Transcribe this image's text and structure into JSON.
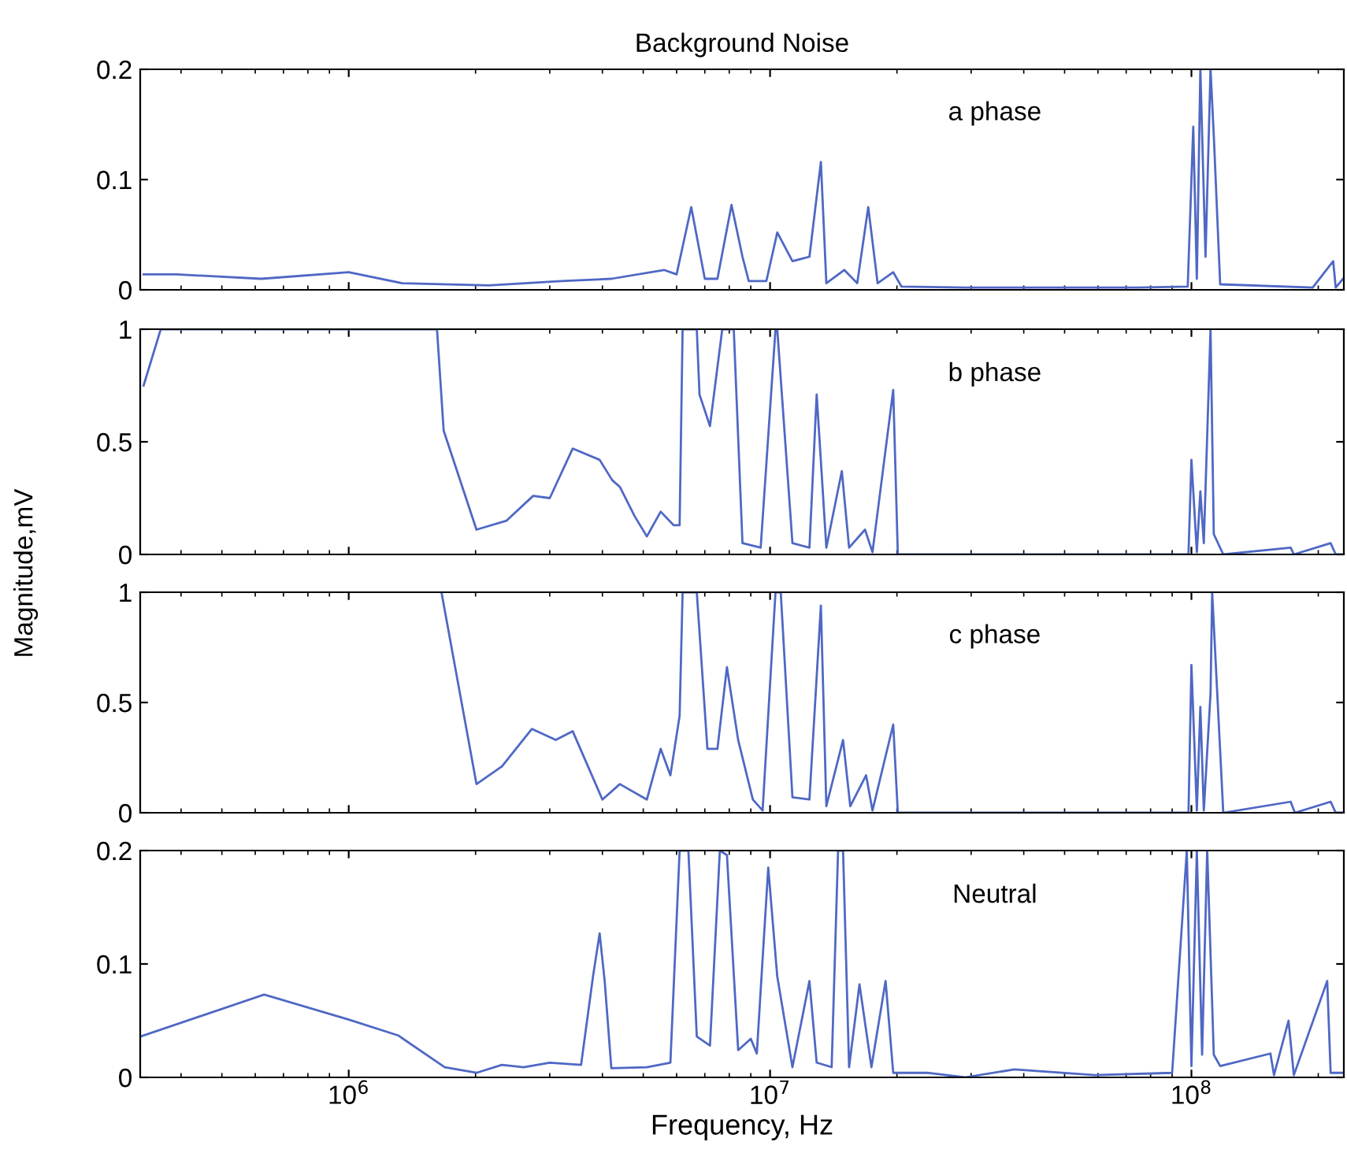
{
  "chart_data": [
    {
      "type": "line",
      "title": "Background Noise",
      "annotations": [
        "a phase"
      ],
      "log": "x",
      "xlim": [
        320000.0,
        230000000.0
      ],
      "xticks": [
        {
          "value": 1000000.0,
          "label": null
        },
        {
          "value": 10000000.0,
          "label": null
        },
        {
          "value": 100000000.0,
          "label": null
        }
      ],
      "ylim": [
        0,
        0.2
      ],
      "yticks": [
        0,
        0.1,
        0.2
      ],
      "tick_labels": "y",
      "grid": false,
      "legend": false,
      "series": [
        {
          "color": "#4f68c4",
          "x": [
            326000.0,
            390000.0,
            620000.0,
            1000000.0,
            1340000.0,
            2150000.0,
            3200000.0,
            4200000.0,
            5600000.0,
            6000000.0,
            6500000.0,
            7000000.0,
            7500000.0,
            8100000.0,
            8600000.0,
            8900000.0,
            9800000.0,
            10400000.0,
            11300000.0,
            12400000.0,
            13200000.0,
            13600000.0,
            15000000.0,
            16100000.0,
            17100000.0,
            18000000.0,
            19600000.0,
            20500000.0,
            29000000.0,
            75000000.0,
            98000000.0,
            101000000.0,
            103000000.0,
            105000000.0,
            108000000.0,
            111000000.0,
            113000000.0,
            117000000.0,
            194000000.0,
            217000000.0,
            220000000.0,
            229000000.0
          ],
          "values": [
            0.014,
            0.014,
            0.01,
            0.016,
            0.006,
            0.004,
            0.008,
            0.01,
            0.018,
            0.014,
            0.075,
            0.01,
            0.01,
            0.077,
            0.03,
            0.008,
            0.008,
            0.052,
            0.026,
            0.03,
            0.116,
            0.006,
            0.018,
            0.006,
            0.075,
            0.006,
            0.016,
            0.003,
            0.002,
            0.002,
            0.003,
            0.148,
            0.01,
            0.2,
            0.03,
            0.2,
            0.14,
            0.005,
            0.002,
            0.026,
            0.002,
            0.01
          ]
        }
      ]
    },
    {
      "type": "line",
      "annotations": [
        "b phase"
      ],
      "log": "x",
      "xlim": [
        320000.0,
        230000000.0
      ],
      "xticks": [
        {
          "value": 1000000.0,
          "label": null
        },
        {
          "value": 10000000.0,
          "label": null
        },
        {
          "value": 100000000.0,
          "label": null
        }
      ],
      "ylim": [
        0,
        1
      ],
      "yticks": [
        0,
        0.5,
        1
      ],
      "tick_labels": "y",
      "grid": false,
      "legend": false,
      "series": [
        {
          "color": "#4f68c4",
          "x": [
            326000.0,
            358000.0,
            1620000.0,
            1680000.0,
            2010000.0,
            2370000.0,
            2740000.0,
            3000000.0,
            3400000.0,
            3940000.0,
            4220000.0,
            4400000.0,
            4770000.0,
            5100000.0,
            5500000.0,
            5900000.0,
            6100000.0,
            6200000.0,
            6700000.0,
            6800000.0,
            7200000.0,
            7700000.0,
            8200000.0,
            8600000.0,
            9500000.0,
            10300000.0,
            10400000.0,
            11300000.0,
            12400000.0,
            12900000.0,
            13600000.0,
            14800000.0,
            15400000.0,
            16800000.0,
            17500000.0,
            19600000.0,
            20100000.0,
            75000000.0,
            98400000.0,
            100000000.0,
            103000000.0,
            105000000.0,
            107000000.0,
            111000000.0,
            113000000.0,
            119000000.0,
            172000000.0,
            175000000.0,
            214000000.0,
            220000000.0,
            229000000.0
          ],
          "values": [
            0.75,
            1,
            1,
            0.55,
            0.11,
            0.15,
            0.26,
            0.25,
            0.47,
            0.42,
            0.33,
            0.3,
            0.17,
            0.08,
            0.19,
            0.13,
            0.13,
            1,
            1,
            0.71,
            0.57,
            1,
            1,
            0.05,
            0.03,
            1,
            1,
            0.05,
            0.03,
            0.71,
            0.03,
            0.37,
            0.03,
            0.11,
            0.01,
            0.73,
            0,
            0,
            0,
            0.42,
            0.01,
            0.28,
            0.05,
            1,
            0.09,
            0,
            0.03,
            0,
            0.05,
            0,
            0
          ]
        }
      ]
    },
    {
      "type": "line",
      "ylabel": "Magnitude,mV",
      "annotations": [
        "c phase"
      ],
      "log": "x",
      "xlim": [
        320000.0,
        230000000.0
      ],
      "xticks": [
        {
          "value": 1000000.0,
          "label": null
        },
        {
          "value": 10000000.0,
          "label": null
        },
        {
          "value": 100000000.0,
          "label": null
        }
      ],
      "ylim": [
        0,
        1
      ],
      "yticks": [
        0,
        0.5,
        1
      ],
      "tick_labels": "y",
      "grid": false,
      "legend": false,
      "series": [
        {
          "color": "#4f68c4",
          "x": [
            1660000.0,
            2010000.0,
            2310000.0,
            2720000.0,
            3100000.0,
            3400000.0,
            4000000.0,
            4400000.0,
            5100000.0,
            5500000.0,
            5800000.0,
            6100000.0,
            6200000.0,
            6700000.0,
            7100000.0,
            7500000.0,
            7900000.0,
            8400000.0,
            9100000.0,
            9600000.0,
            10300000.0,
            10600000.0,
            11300000.0,
            12400000.0,
            13200000.0,
            13600000.0,
            14900000.0,
            15500000.0,
            16900000.0,
            17500000.0,
            19600000.0,
            20100000.0,
            98400000.0,
            100000000.0,
            103000000.0,
            105000000.0,
            107000000.0,
            111000000.0,
            112000000.0,
            119000000.0,
            172000000.0,
            176000000.0,
            214000000.0,
            220000000.0,
            229000000.0
          ],
          "values": [
            1,
            0.13,
            0.21,
            0.38,
            0.33,
            0.37,
            0.06,
            0.13,
            0.06,
            0.29,
            0.17,
            0.44,
            1,
            1,
            0.29,
            0.29,
            0.66,
            0.33,
            0.06,
            0.01,
            1,
            1,
            0.07,
            0.06,
            0.94,
            0.03,
            0.33,
            0.03,
            0.17,
            0.01,
            0.4,
            0,
            0,
            0.67,
            0.01,
            0.48,
            0.01,
            0.54,
            1,
            0,
            0.05,
            0,
            0.05,
            0,
            0
          ]
        }
      ]
    },
    {
      "type": "line",
      "xlabel": "Frequency, Hz",
      "annotations": [
        "Neutral"
      ],
      "log": "x",
      "xlim": [
        320000.0,
        230000000.0
      ],
      "xticks": [
        {
          "value": 1000000.0,
          "label": "10$^{6}$"
        },
        {
          "value": 10000000.0,
          "label": "10$^{7}$"
        },
        {
          "value": 100000000.0,
          "label": "10$^{8}$"
        }
      ],
      "ylim": [
        0,
        0.2
      ],
      "yticks": [
        0,
        0.1,
        0.2
      ],
      "grid": false,
      "legend": false,
      "series": [
        {
          "color": "#4f68c4",
          "x": [
            320000.0,
            630000.0,
            1000000.0,
            1310000.0,
            1690000.0,
            2010000.0,
            2310000.0,
            2600000.0,
            3000000.0,
            3560000.0,
            3800000.0,
            3940000.0,
            4050000.0,
            4200000.0,
            5100000.0,
            5800000.0,
            6100000.0,
            6400000.0,
            6700000.0,
            7200000.0,
            7600000.0,
            7900000.0,
            8400000.0,
            9000000.0,
            9300000.0,
            9900000.0,
            10400000.0,
            11300000.0,
            12400000.0,
            12900000.0,
            14000000.0,
            14500000.0,
            14900000.0,
            15400000.0,
            16300000.0,
            17400000.0,
            18800000.0,
            19600000.0,
            23600000.0,
            29000000.0,
            38000000.0,
            59000000.0,
            90000000.0,
            97500000.0,
            100000000.0,
            103000000.0,
            106000000.0,
            109000000.0,
            113000000.0,
            117000000.0,
            154000000.0,
            157000000.0,
            170000000.0,
            175000000.0,
            210000000.0,
            214000000.0,
            229000000.0
          ],
          "values": [
            0.036,
            0.073,
            0.051,
            0.037,
            0.009,
            0.004,
            0.011,
            0.009,
            0.013,
            0.011,
            0.089,
            0.127,
            0.085,
            0.008,
            0.009,
            0.013,
            0.2,
            0.2,
            0.036,
            0.028,
            0.2,
            0.196,
            0.024,
            0.034,
            0.021,
            0.185,
            0.089,
            0.009,
            0.085,
            0.013,
            0.009,
            0.2,
            0.2,
            0.009,
            0.082,
            0.009,
            0.085,
            0.004,
            0.004,
            0,
            0.007,
            0.002,
            0.004,
            0.2,
            0.01,
            0.2,
            0.02,
            0.2,
            0.02,
            0.01,
            0.021,
            0.002,
            0.05,
            0.002,
            0.085,
            0.004,
            0.004
          ]
        }
      ]
    }
  ]
}
